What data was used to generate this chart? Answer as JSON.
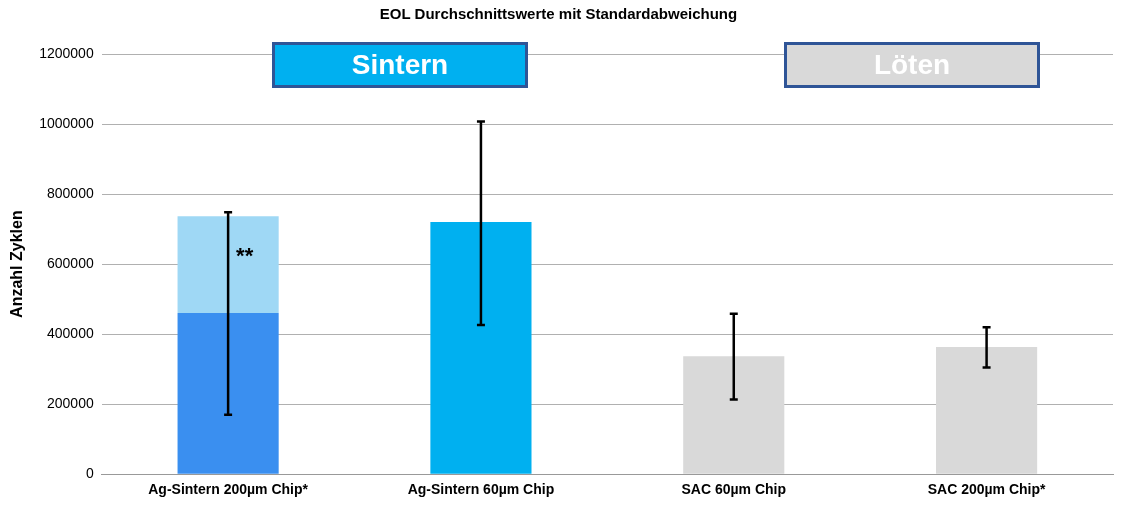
{
  "chart_data": {
    "type": "bar",
    "title": "EOL Durchschnittswerte mit Standardabweichung",
    "ylabel": "Anzahl Zyklen",
    "categories": [
      "Ag-Sintern 200µm Chip*",
      "Ag-Sintern 60µm Chip",
      "SAC 60µm Chip",
      "SAC 200µm Chip*"
    ],
    "stacked": true,
    "series": [
      {
        "colors": [
          "#3a8ff0",
          "#00b0f0",
          "#d9d9d9",
          "#d9d9d9"
        ],
        "values": [
          460000,
          720000,
          337000,
          363000
        ],
        "errors": [
          [
            170000,
            748000
          ],
          [
            426000,
            1007000
          ],
          [
            213000,
            458000
          ],
          [
            305000,
            420000
          ]
        ]
      },
      {
        "colors": [
          "#9fd8f5",
          "#9fd8f5",
          "#9fd8f5",
          "#9fd8f5"
        ],
        "values": [
          277000,
          null,
          null,
          null
        ]
      }
    ],
    "ylim": [
      0,
      1200000
    ],
    "yticks": [
      0,
      200000,
      400000,
      600000,
      800000,
      1000000,
      1200000
    ],
    "grid": "y",
    "legend": false,
    "annotations": [
      "Sintern",
      "Löten",
      {
        "text": "**",
        "x": "Ag-Sintern 200µm Chip*",
        "y": 620000
      }
    ]
  }
}
